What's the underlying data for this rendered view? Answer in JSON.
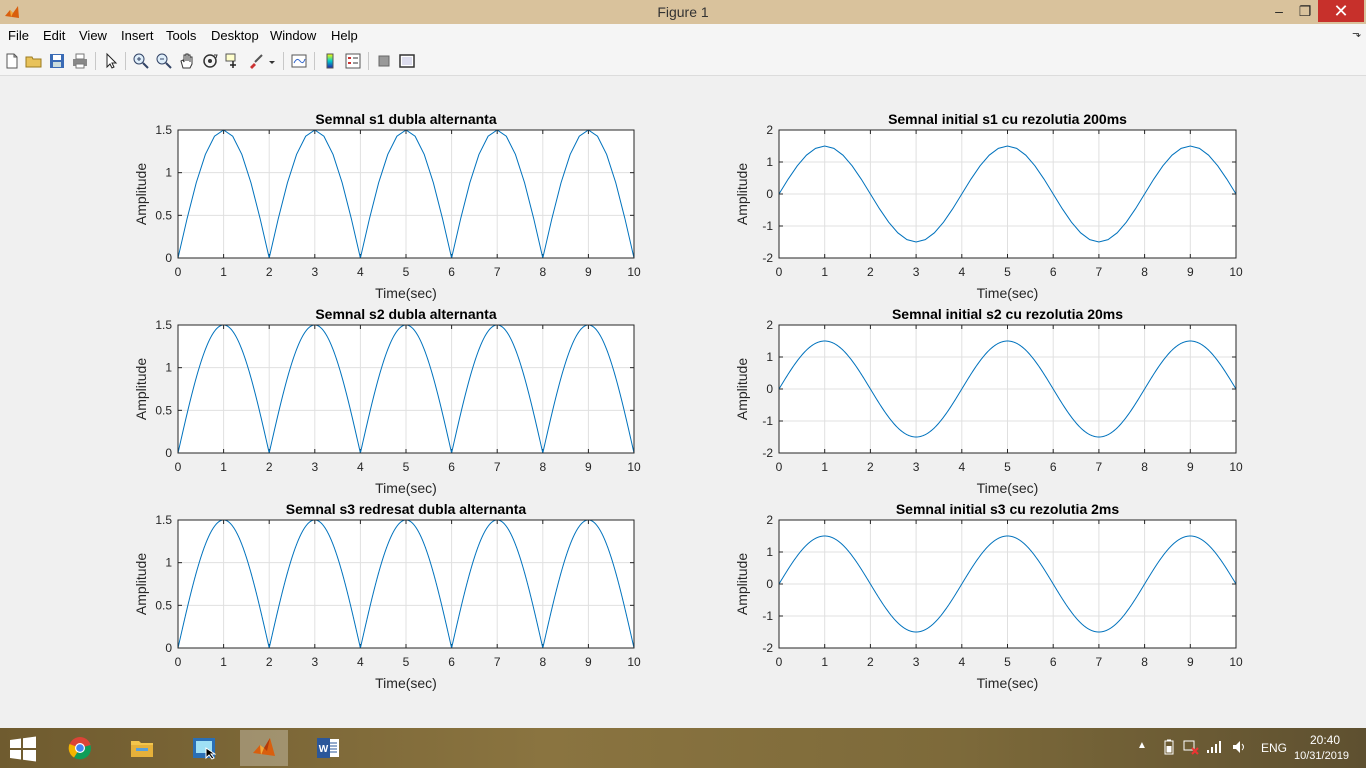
{
  "window": {
    "title": "Figure 1",
    "controls": [
      "–",
      "❐",
      "✕"
    ]
  },
  "menu": [
    "File",
    "Edit",
    "View",
    "Insert",
    "Tools",
    "Desktop",
    "Window",
    "Help"
  ],
  "toolbar_icons": [
    "new-figure-icon",
    "open-file-icon",
    "save-icon",
    "print-icon",
    "edit-plot-icon",
    "zoom-in-icon",
    "zoom-out-icon",
    "pan-icon",
    "rotate-3d-icon",
    "data-cursor-icon",
    "brush-icon",
    "link-plot-icon",
    "insert-colorbar-icon",
    "insert-legend-icon",
    "hide-plot-tools-icon",
    "show-plot-tools-icon"
  ],
  "chart_data": [
    {
      "type": "line",
      "title": "Semnal s1 dubla alternanta",
      "xlabel": "Time(sec)",
      "ylabel": "Amplitude",
      "xlim": [
        0,
        10
      ],
      "ylim": [
        0,
        1.5
      ],
      "xticks": [
        "0",
        "1",
        "2",
        "3",
        "4",
        "5",
        "6",
        "7",
        "8",
        "9",
        "10"
      ],
      "yticks": [
        "0",
        "0.5",
        "1",
        "1.5"
      ],
      "grid": true,
      "signal": "abs_sine",
      "amplitude": 1.5,
      "period": 4,
      "step": 0.2
    },
    {
      "type": "line",
      "title": "Semnal initial s1 cu rezolutia 200ms",
      "xlabel": "Time(sec)",
      "ylabel": "Amplitude",
      "xlim": [
        0,
        10
      ],
      "ylim": [
        -2,
        2
      ],
      "xticks": [
        "0",
        "1",
        "2",
        "3",
        "4",
        "5",
        "6",
        "7",
        "8",
        "9",
        "10"
      ],
      "yticks": [
        "-2",
        "-1",
        "0",
        "1",
        "2"
      ],
      "grid": true,
      "signal": "sine",
      "amplitude": 1.5,
      "period": 4,
      "step": 0.2
    },
    {
      "type": "line",
      "title": "Semnal s2 dubla alternanta",
      "xlabel": "Time(sec)",
      "ylabel": "Amplitude",
      "xlim": [
        0,
        10
      ],
      "ylim": [
        0,
        1.5
      ],
      "xticks": [
        "0",
        "1",
        "2",
        "3",
        "4",
        "5",
        "6",
        "7",
        "8",
        "9",
        "10"
      ],
      "yticks": [
        "0",
        "0.5",
        "1",
        "1.5"
      ],
      "grid": true,
      "signal": "abs_sine",
      "amplitude": 1.5,
      "period": 4,
      "step": 0.02
    },
    {
      "type": "line",
      "title": "Semnal initial s2 cu rezolutia 20ms",
      "xlabel": "Time(sec)",
      "ylabel": "Amplitude",
      "xlim": [
        0,
        10
      ],
      "ylim": [
        -2,
        2
      ],
      "xticks": [
        "0",
        "1",
        "2",
        "3",
        "4",
        "5",
        "6",
        "7",
        "8",
        "9",
        "10"
      ],
      "yticks": [
        "-2",
        "-1",
        "0",
        "1",
        "2"
      ],
      "grid": true,
      "signal": "sine",
      "amplitude": 1.5,
      "period": 4,
      "step": 0.02
    },
    {
      "type": "line",
      "title": "Semnal s3 redresat dubla alternanta",
      "xlabel": "Time(sec)",
      "ylabel": "Amplitude",
      "xlim": [
        0,
        10
      ],
      "ylim": [
        0,
        1.5
      ],
      "xticks": [
        "0",
        "1",
        "2",
        "3",
        "4",
        "5",
        "6",
        "7",
        "8",
        "9",
        "10"
      ],
      "yticks": [
        "0",
        "0.5",
        "1",
        "1.5"
      ],
      "grid": true,
      "signal": "abs_sine",
      "amplitude": 1.5,
      "period": 4,
      "step": 0.002
    },
    {
      "type": "line",
      "title": "Semnal initial s3 cu rezolutia 2ms",
      "xlabel": "Time(sec)",
      "ylabel": "Amplitude",
      "xlim": [
        0,
        10
      ],
      "ylim": [
        -2,
        2
      ],
      "xticks": [
        "0",
        "1",
        "2",
        "3",
        "4",
        "5",
        "6",
        "7",
        "8",
        "9",
        "10"
      ],
      "yticks": [
        "-2",
        "-1",
        "0",
        "1",
        "2"
      ],
      "grid": true,
      "signal": "sine",
      "amplitude": 1.5,
      "period": 4,
      "step": 0.002
    }
  ],
  "colors": {
    "line": "#0072bd",
    "grid": "#e0e0e0",
    "axes": "#262626"
  },
  "taskbar": {
    "apps": [
      "chrome-icon",
      "file-explorer-icon",
      "screen-tool-icon",
      "matlab-icon",
      "word-icon"
    ],
    "tray": {
      "lang": "ENG",
      "time": "20:40",
      "date": "10/31/2019"
    }
  }
}
